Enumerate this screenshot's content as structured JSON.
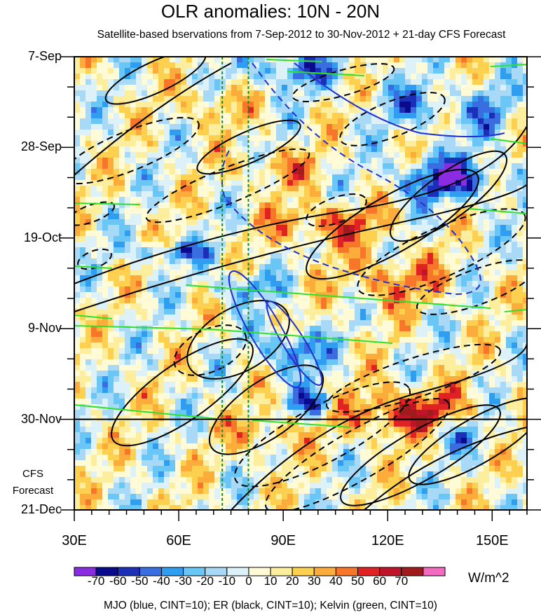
{
  "chart_data": {
    "type": "heatmap",
    "title": "OLR anomalies: 10N - 20N",
    "subtitle": "Satellite-based bservations from 7-Sep-2012 to 30-Nov-2012 + 21-day CFS Forecast",
    "x_ticks": [
      "30E",
      "60E",
      "90E",
      "120E",
      "150E"
    ],
    "x_tick_values": [
      30,
      60,
      90,
      120,
      150
    ],
    "xlim": [
      30,
      160
    ],
    "y_ticks": [
      "7-Sep",
      "28-Sep",
      "19-Oct",
      "9-Nov",
      "30-Nov",
      "21-Dec"
    ],
    "y_tick_days": [
      0,
      21,
      42,
      63,
      84,
      105
    ],
    "forecast_start_day": 84,
    "forecast_label": [
      "CFS",
      "Forecast"
    ],
    "dashed_meridians_lon": [
      72.5,
      80
    ],
    "colorbar": {
      "levels": [
        -70,
        -60,
        -50,
        -40,
        -30,
        -20,
        -10,
        0,
        10,
        20,
        30,
        40,
        50,
        60,
        70
      ],
      "colors": [
        "#8b2be2",
        "#0a0a8c",
        "#1c2fb8",
        "#3a6ee0",
        "#2f9ef0",
        "#69c6f5",
        "#a8daf7",
        "#dcf2f8",
        "#fffbd6",
        "#fdee9e",
        "#fdd14f",
        "#fbac3a",
        "#f7762a",
        "#e02222",
        "#c0142a",
        "#a01c1c",
        "#f36bc1"
      ],
      "tick_labels": [
        "-70",
        "-60",
        "-50",
        "-40",
        "-30",
        "-20",
        "-10",
        "0",
        "10",
        "20",
        "30",
        "40",
        "50",
        "60",
        "70"
      ],
      "units": "W/m^2"
    },
    "legend_text": "MJO (blue, CINT=10); ER (black, CINT=10); Kelvin (green, CINT=10)",
    "series": [
      {
        "name": "MJO",
        "color": "#1f2fd0"
      },
      {
        "name": "ER",
        "color": "#000000"
      },
      {
        "name": "Kelvin",
        "color": "#2fe02f"
      }
    ]
  }
}
